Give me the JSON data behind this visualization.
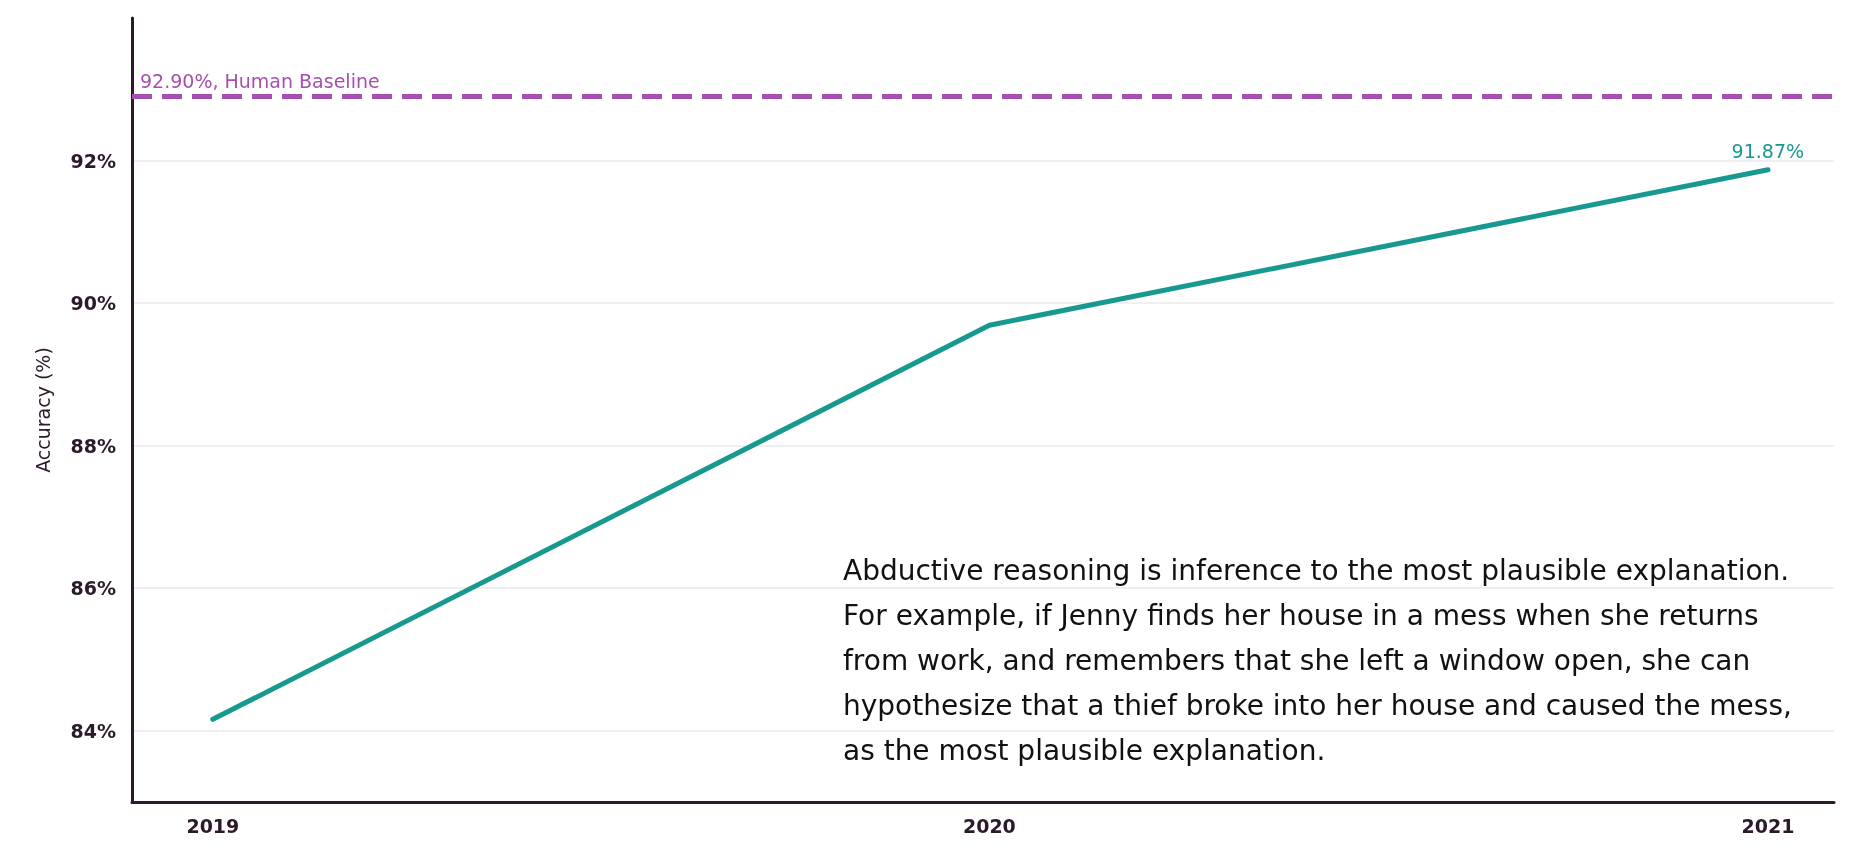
{
  "chart_data": {
    "type": "line",
    "ylabel": "Accuracy (%)",
    "x": [
      "2019",
      "2020",
      "2021"
    ],
    "xlim": [
      "2018-11-24",
      "2021-02-01"
    ],
    "xticks": [
      {
        "value": "2019",
        "label": "2019"
      },
      {
        "value": "2020",
        "label": "2020"
      },
      {
        "value": "2021",
        "label": "2021"
      }
    ],
    "ylim": [
      83,
      94
    ],
    "yticks": [
      {
        "value": 84,
        "label": "84%"
      },
      {
        "value": 86,
        "label": "86%"
      },
      {
        "value": 88,
        "label": "88%"
      },
      {
        "value": 90,
        "label": "90%"
      },
      {
        "value": 92,
        "label": "92%"
      }
    ],
    "series": [
      {
        "color": "#17998f",
        "values": [
          84.16,
          89.69,
          91.87
        ],
        "value_labels": [
          null,
          null,
          "91.87%"
        ]
      }
    ],
    "ref_lines": [
      {
        "axis": "y",
        "value": 92.9,
        "label": "92.90%, Human Baseline",
        "color": "#a64fb0",
        "line_style": "dashed"
      }
    ],
    "grid": "y",
    "marker": "none",
    "line_style": "solid",
    "annotations": [
      "Abductive reasoning is inference to the most plausible explanation. For example, if Jenny finds her house in a mess when she returns from work, and remembers that she left a window open, she can hypothesize that a thief broke into her house and caused the mess, as the most plausible explanation."
    ]
  }
}
